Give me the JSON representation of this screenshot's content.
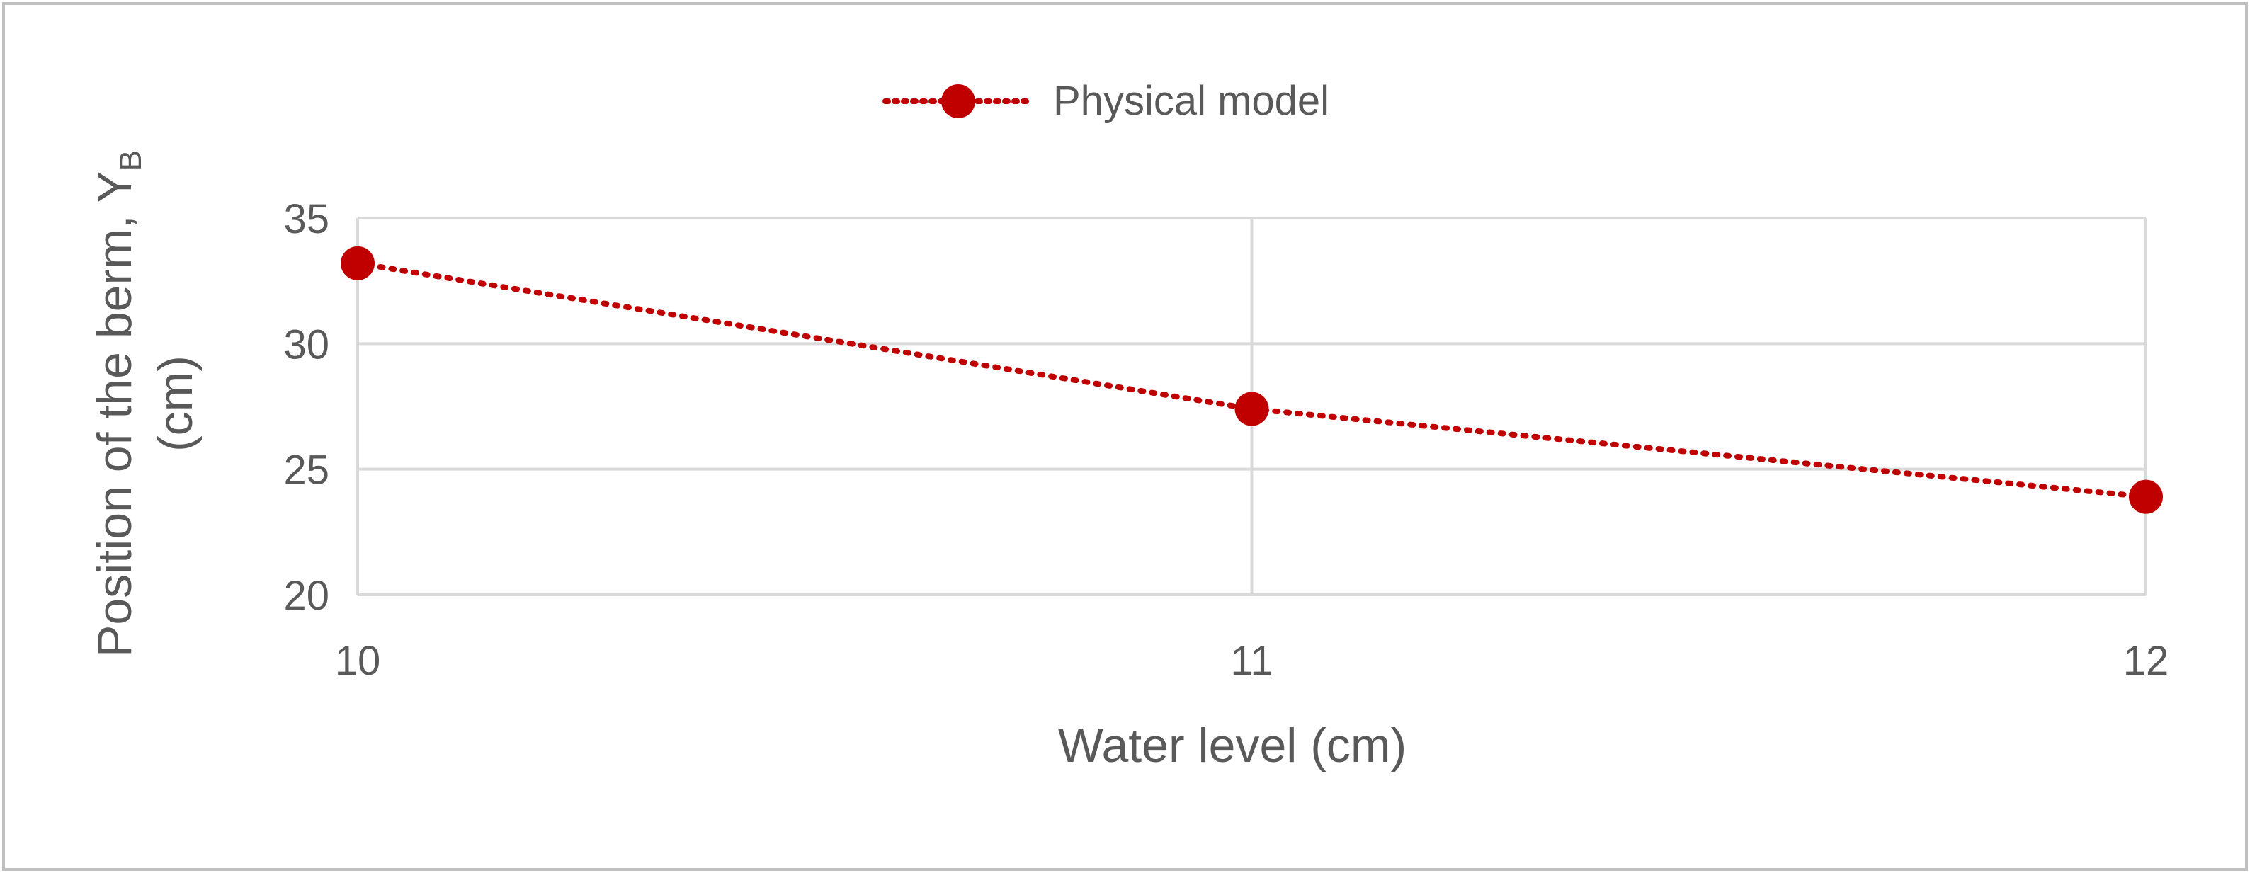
{
  "chart_data": {
    "type": "line",
    "title": "",
    "xlabel": "Water level (cm)",
    "ylabel_line1": "Position of the berm, Y",
    "ylabel_subscript": "B",
    "ylabel_line2": "(cm)",
    "x": [
      10,
      11,
      12
    ],
    "x_ticks": [
      "10",
      "11",
      "12"
    ],
    "y_ticks": [
      "20",
      "25",
      "30",
      "35"
    ],
    "ylim": [
      20,
      35
    ],
    "xlim": [
      10,
      12
    ],
    "grid": true,
    "legend_position": "top-center",
    "series": [
      {
        "name": "Physical model",
        "values": [
          33.2,
          27.4,
          23.9
        ],
        "color": "#c00000",
        "line_style": "dotted",
        "marker": "circle"
      }
    ]
  },
  "colors": {
    "gridline": "#d9d9d9",
    "text": "#595959",
    "border": "#bfbfbf"
  }
}
